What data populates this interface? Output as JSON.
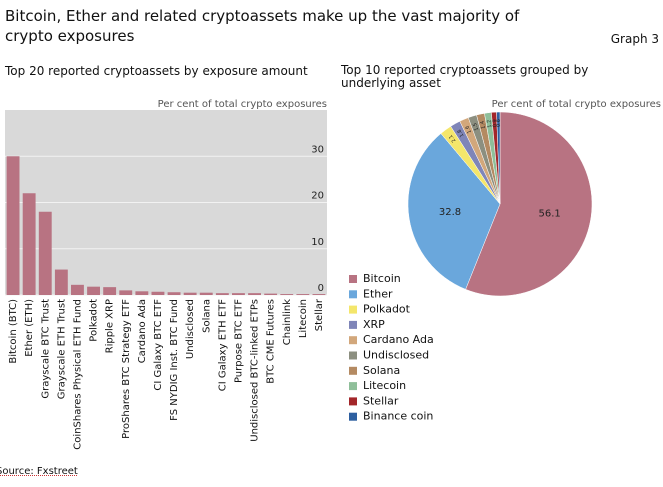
{
  "title": "Bitcoin, Ether and related cryptoassets make up the vast majority of crypto exposures",
  "graph_label": "Graph 3",
  "source": "Source: Fxstreet",
  "chart_data": [
    {
      "type": "bar",
      "title": "Top 20 reported cryptoassets by exposure amount",
      "y_label": "Per cent of total crypto exposures",
      "categories": [
        "Bitcoin (BTC)",
        "Ether (ETH)",
        "Grayscale BTC Trust",
        "Grayscale ETH Trust",
        "CoinShares Physical ETH Fund",
        "Polkadot",
        "Ripple XRP",
        "ProShares BTC Strategy ETF",
        "Cardano Ada",
        "CI Galaxy BTC ETF",
        "FS NYDIG Inst. BTC Fund",
        "Undisclosed",
        "Solana",
        "CI Galaxy ETH ETF",
        "Purpose BTC ETF",
        "Undisclosed BTC-linked ETPs",
        "BTC CME Futures",
        "Chainlink",
        "Litecoin",
        "Stellar"
      ],
      "values": [
        30,
        22,
        18,
        5.5,
        2.2,
        1.8,
        1.7,
        1.0,
        0.8,
        0.7,
        0.6,
        0.5,
        0.5,
        0.4,
        0.4,
        0.4,
        0.3,
        0.2,
        0.2,
        0.2
      ],
      "color": "#b87382",
      "ylim": [
        0,
        40
      ],
      "yticks": [
        0,
        10,
        20,
        30
      ],
      "grid": true
    },
    {
      "type": "pie",
      "title": "Top 10 reported cryptoassets grouped by underlying asset",
      "y_label": "Per cent of total crypto exposures",
      "categories": [
        "Bitcoin",
        "Ether",
        "Polkadot",
        "XRP",
        "Cardano Ada",
        "Undisclosed",
        "Solana",
        "Litecoin",
        "Stellar",
        "Binance coin"
      ],
      "values": [
        56.1,
        32.8,
        2.1,
        1.8,
        1.6,
        1.5,
        1.4,
        1.2,
        0.9,
        0.6
      ],
      "colors": [
        "#b87382",
        "#6aa7dc",
        "#f4e66b",
        "#7f85b8",
        "#d2a77b",
        "#8c8f80",
        "#b48a62",
        "#8fbf9a",
        "#a3262a",
        "#2d5fa0"
      ]
    }
  ]
}
